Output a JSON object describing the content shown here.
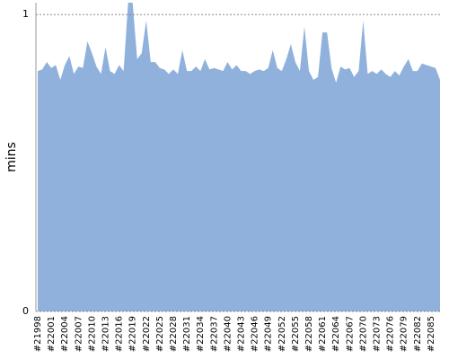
{
  "chart_data": {
    "type": "area",
    "y_label": "mins",
    "color": "#8fb1dc",
    "categories": [
      "#21998",
      null,
      null,
      "#22001",
      null,
      null,
      "#22004",
      null,
      null,
      "#22007",
      null,
      null,
      "#22010",
      null,
      null,
      "#22013",
      null,
      null,
      "#22016",
      null,
      null,
      "#22019",
      null,
      null,
      "#22022",
      null,
      null,
      "#22025",
      null,
      null,
      "#22028",
      null,
      null,
      "#22031",
      null,
      null,
      "#22034",
      null,
      null,
      "#22037",
      null,
      null,
      "#22040",
      null,
      null,
      "#22043",
      null,
      null,
      "#22046",
      null,
      null,
      "#22049",
      null,
      null,
      "#22052",
      null,
      null,
      "#22055",
      null,
      null,
      "#22058",
      null,
      null,
      "#22061",
      null,
      null,
      "#22064",
      null,
      null,
      "#22067",
      null,
      null,
      "#22070",
      null,
      null,
      "#22073",
      null,
      null,
      "#22076",
      null,
      null,
      "#22079",
      null,
      null,
      "#22082",
      null,
      null,
      "#22085",
      null,
      null
    ],
    "values": [
      0.81,
      0.815,
      0.84,
      0.82,
      0.83,
      0.78,
      0.83,
      0.86,
      0.8,
      0.825,
      0.82,
      0.91,
      0.87,
      0.825,
      0.8,
      0.89,
      0.81,
      0.8,
      0.83,
      0.81,
      1.04,
      1.04,
      0.85,
      0.87,
      0.98,
      0.84,
      0.84,
      0.82,
      0.815,
      0.8,
      0.815,
      0.8,
      0.88,
      0.81,
      0.81,
      0.825,
      0.81,
      0.85,
      0.815,
      0.82,
      0.815,
      0.81,
      0.84,
      0.815,
      0.83,
      0.81,
      0.81,
      0.8,
      0.81,
      0.815,
      0.81,
      0.82,
      0.88,
      0.82,
      0.81,
      0.85,
      0.9,
      0.84,
      0.81,
      0.96,
      0.81,
      0.78,
      0.79,
      0.94,
      0.94,
      0.82,
      0.77,
      0.825,
      0.815,
      0.82,
      0.79,
      0.81,
      0.98,
      0.8,
      0.81,
      0.8,
      0.815,
      0.8,
      0.79,
      0.81,
      0.795,
      0.825,
      0.85,
      0.81,
      0.81,
      0.835,
      0.83,
      0.825,
      0.82,
      0.78
    ],
    "ylim": [
      0,
      1.04
    ],
    "yticks": [
      0,
      1
    ],
    "grid": true
  }
}
